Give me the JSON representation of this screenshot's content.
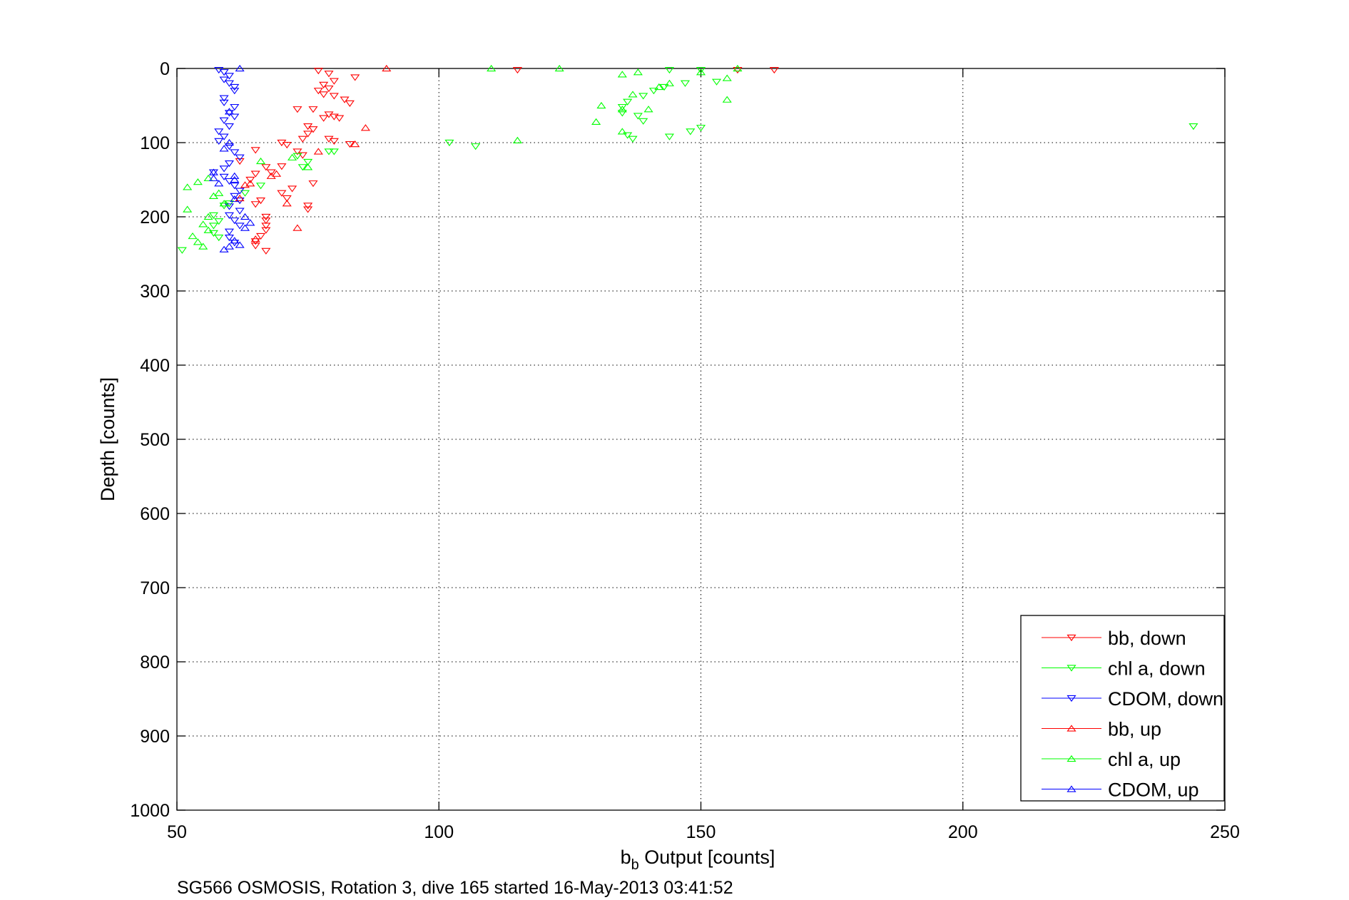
{
  "chart_data": {
    "type": "scatter",
    "xlabel_main": "b",
    "xlabel_sub": "b",
    "xlabel_rest": " Output [counts]",
    "ylabel": "Depth [counts]",
    "caption": "SG566 OSMOSIS, Rotation 3, dive 165 started 16-May-2013 03:41:52",
    "xlim": [
      50,
      250
    ],
    "ylim": [
      0,
      1000
    ],
    "y_reversed": true,
    "grid": true,
    "legend_position": "bottom-right",
    "x_ticks": [
      50,
      100,
      150,
      200,
      250
    ],
    "y_ticks": [
      0,
      100,
      200,
      300,
      400,
      500,
      600,
      700,
      800,
      900,
      1000
    ],
    "colors": {
      "red": "#ff0000",
      "green": "#00ff00",
      "blue": "#0000ff"
    },
    "series": [
      {
        "name": "bb, down",
        "color": "#ff0000",
        "marker": "triangle-down",
        "points": [
          [
            77,
            3
          ],
          [
            79,
            7
          ],
          [
            84,
            12
          ],
          [
            80,
            17
          ],
          [
            78,
            22
          ],
          [
            79,
            27
          ],
          [
            77,
            30
          ],
          [
            78,
            35
          ],
          [
            80,
            37
          ],
          [
            82,
            42
          ],
          [
            83,
            47
          ],
          [
            76,
            55
          ],
          [
            73,
            55
          ],
          [
            79,
            62
          ],
          [
            80,
            65
          ],
          [
            81,
            67
          ],
          [
            78,
            67
          ],
          [
            75,
            78
          ],
          [
            76,
            82
          ],
          [
            75,
            88
          ],
          [
            74,
            95
          ],
          [
            79,
            95
          ],
          [
            80,
            98
          ],
          [
            83,
            102
          ],
          [
            70,
            100
          ],
          [
            71,
            103
          ],
          [
            73,
            112
          ],
          [
            74,
            117
          ],
          [
            62,
            125
          ],
          [
            67,
            133
          ],
          [
            70,
            132
          ],
          [
            68,
            140
          ],
          [
            65,
            142
          ],
          [
            64,
            150
          ],
          [
            65,
            110
          ],
          [
            76,
            155
          ],
          [
            72,
            162
          ],
          [
            70,
            168
          ],
          [
            71,
            175
          ],
          [
            66,
            178
          ],
          [
            65,
            183
          ],
          [
            75,
            185
          ],
          [
            75,
            190
          ],
          [
            67,
            200
          ],
          [
            67,
            205
          ],
          [
            67,
            212
          ],
          [
            67,
            218
          ],
          [
            66,
            226
          ],
          [
            65,
            233
          ],
          [
            65,
            239
          ],
          [
            67,
            246
          ],
          [
            115,
            2
          ],
          [
            157,
            2
          ],
          [
            164,
            2
          ]
        ]
      },
      {
        "name": "chl a, down",
        "color": "#00ff00",
        "marker": "triangle-down",
        "points": [
          [
            144,
            2
          ],
          [
            150,
            2
          ],
          [
            153,
            18
          ],
          [
            147,
            20
          ],
          [
            143,
            25
          ],
          [
            141,
            30
          ],
          [
            139,
            37
          ],
          [
            136,
            45
          ],
          [
            135,
            52
          ],
          [
            135,
            60
          ],
          [
            138,
            64
          ],
          [
            139,
            71
          ],
          [
            136,
            90
          ],
          [
            137,
            95
          ],
          [
            144,
            92
          ],
          [
            148,
            85
          ],
          [
            150,
            80
          ],
          [
            102,
            100
          ],
          [
            107,
            105
          ],
          [
            80,
            112
          ],
          [
            79,
            112
          ],
          [
            73,
            118
          ],
          [
            75,
            126
          ],
          [
            74,
            133
          ],
          [
            66,
            158
          ],
          [
            63,
            168
          ],
          [
            60,
            182
          ],
          [
            59,
            185
          ],
          [
            57,
            198
          ],
          [
            58,
            206
          ],
          [
            57,
            212
          ],
          [
            57,
            222
          ],
          [
            58,
            228
          ],
          [
            51,
            245
          ],
          [
            244,
            78
          ]
        ]
      },
      {
        "name": "CDOM, down",
        "color": "#0000ff",
        "marker": "triangle-down",
        "points": [
          [
            58,
            2
          ],
          [
            59,
            5
          ],
          [
            60,
            10
          ],
          [
            59,
            15
          ],
          [
            60,
            20
          ],
          [
            61,
            25
          ],
          [
            61,
            30
          ],
          [
            59,
            40
          ],
          [
            59,
            46
          ],
          [
            61,
            52
          ],
          [
            60,
            60
          ],
          [
            61,
            65
          ],
          [
            59,
            70
          ],
          [
            60,
            78
          ],
          [
            58,
            85
          ],
          [
            59,
            92
          ],
          [
            58,
            98
          ],
          [
            60,
            105
          ],
          [
            61,
            113
          ],
          [
            62,
            120
          ],
          [
            60,
            128
          ],
          [
            59,
            135
          ],
          [
            57,
            140
          ],
          [
            59,
            146
          ],
          [
            60,
            152
          ],
          [
            61,
            158
          ],
          [
            62,
            165
          ],
          [
            61,
            172
          ],
          [
            62,
            178
          ],
          [
            60,
            186
          ],
          [
            62,
            192
          ],
          [
            60,
            198
          ],
          [
            61,
            205
          ],
          [
            62,
            212
          ],
          [
            60,
            220
          ],
          [
            60,
            228
          ],
          [
            61,
            235
          ]
        ]
      },
      {
        "name": "bb, up",
        "color": "#ff0000",
        "marker": "triangle-up",
        "points": [
          [
            90,
            0
          ],
          [
            86,
            80
          ],
          [
            84,
            102
          ],
          [
            77,
            112
          ],
          [
            68,
            145
          ],
          [
            69,
            142
          ],
          [
            64,
            155
          ],
          [
            63,
            157
          ],
          [
            71,
            182
          ],
          [
            73,
            215
          ],
          [
            65,
            230
          ],
          [
            62,
            175
          ]
        ]
      },
      {
        "name": "chl a, up",
        "color": "#00ff00",
        "marker": "triangle-up",
        "points": [
          [
            110,
            0
          ],
          [
            123,
            0
          ],
          [
            135,
            8
          ],
          [
            138,
            5
          ],
          [
            150,
            5
          ],
          [
            157,
            0
          ],
          [
            155,
            13
          ],
          [
            144,
            20
          ],
          [
            142,
            25
          ],
          [
            137,
            35
          ],
          [
            155,
            42
          ],
          [
            131,
            50
          ],
          [
            135,
            55
          ],
          [
            140,
            55
          ],
          [
            130,
            72
          ],
          [
            135,
            85
          ],
          [
            115,
            97
          ],
          [
            59,
            182
          ],
          [
            66,
            125
          ],
          [
            72,
            120
          ],
          [
            75,
            133
          ],
          [
            52,
            160
          ],
          [
            54,
            153
          ],
          [
            56,
            148
          ],
          [
            52,
            190
          ],
          [
            56,
            200
          ],
          [
            55,
            210
          ],
          [
            56,
            218
          ],
          [
            53,
            226
          ],
          [
            54,
            234
          ],
          [
            55,
            240
          ],
          [
            57,
            172
          ],
          [
            58,
            168
          ]
        ]
      },
      {
        "name": "CDOM, up",
        "color": "#0000ff",
        "marker": "triangle-up",
        "points": [
          [
            62,
            0
          ],
          [
            60,
            58
          ],
          [
            60,
            100
          ],
          [
            59,
            108
          ],
          [
            57,
            140
          ],
          [
            57,
            148
          ],
          [
            58,
            155
          ],
          [
            61,
            145
          ],
          [
            61,
            150
          ],
          [
            63,
            200
          ],
          [
            64,
            208
          ],
          [
            63,
            215
          ],
          [
            61,
            232
          ],
          [
            62,
            238
          ],
          [
            60,
            240
          ],
          [
            59,
            244
          ],
          [
            61,
            176
          ]
        ]
      }
    ]
  }
}
